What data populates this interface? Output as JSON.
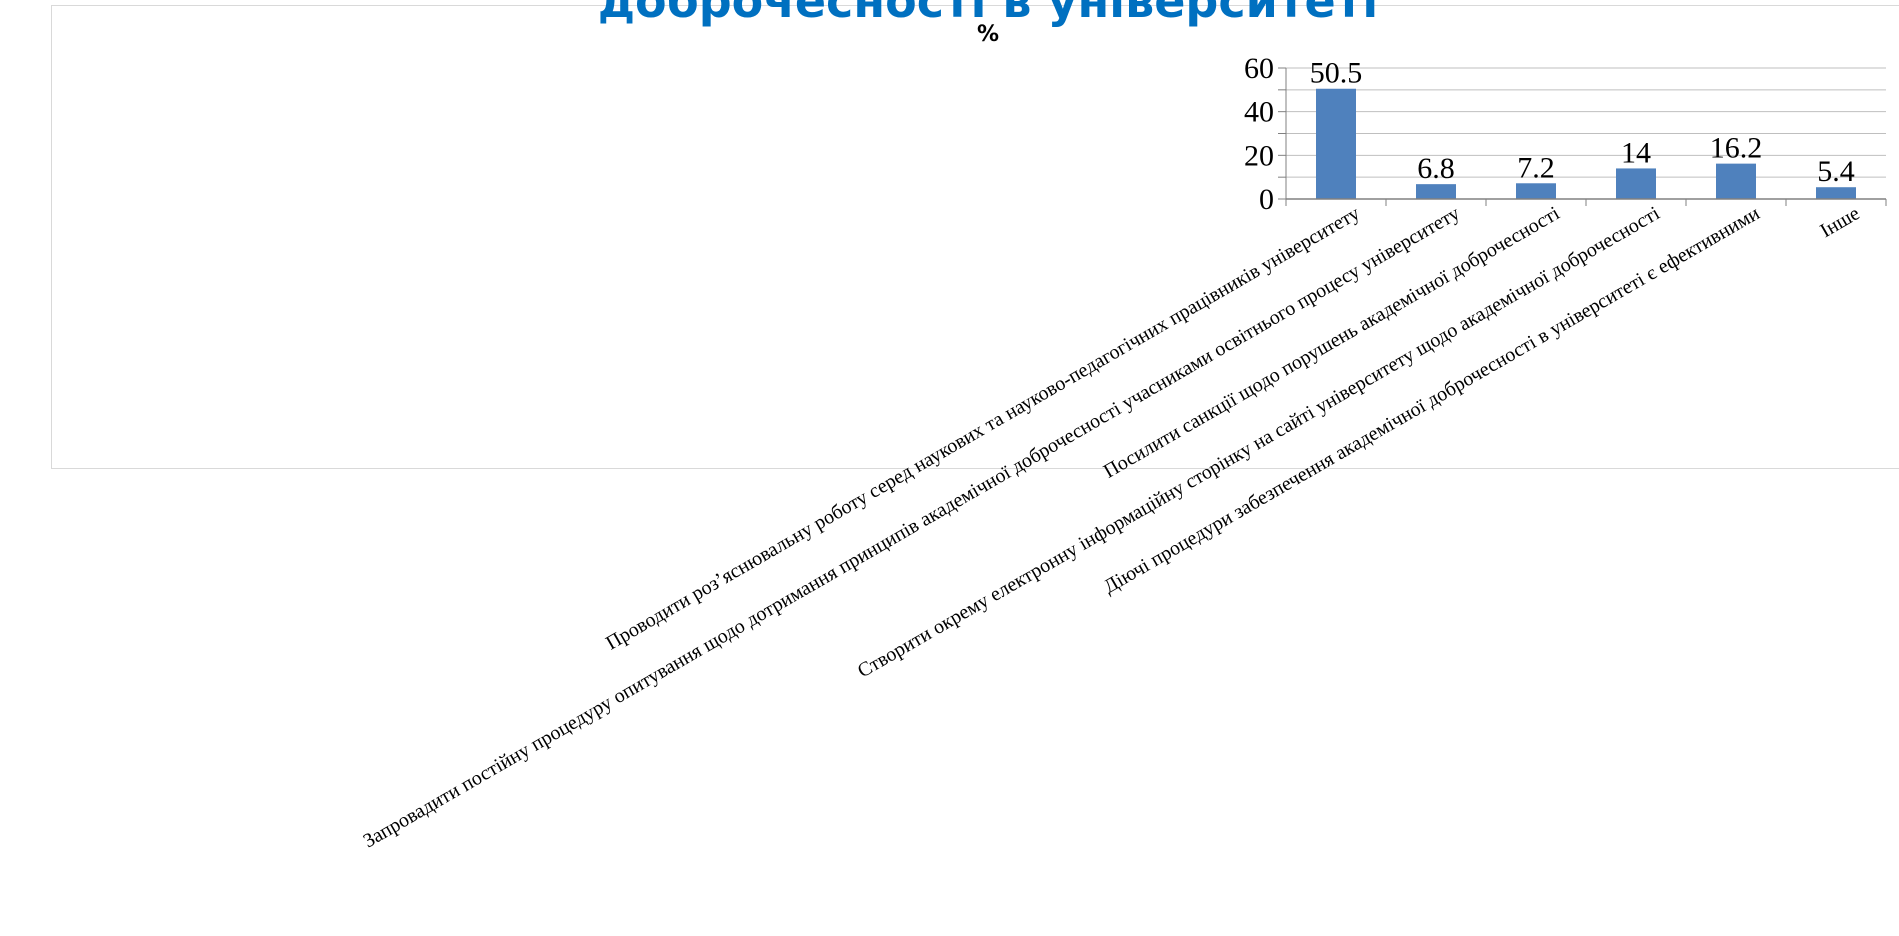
{
  "heading": "доброчесності в університеті",
  "chart_data": {
    "type": "bar",
    "title": "%",
    "categories": [
      "Проводити роз’яснювальну роботу серед наукових та науково-педагогічних працівників університету",
      "Запровадити постійну процедуру опитування щодо дотримання принципів академічної доброчесності учасниками освітнього процесу університету",
      "Посилити санкції щодо порушень академічної доброчесності",
      "Створити окрему електронну інформаційну сторінку на сайті університету щодо академічної доброчесності",
      "Діючі процедури забезпечення академічної доброчесності в університеті є ефективними",
      "Інше"
    ],
    "values": [
      50.5,
      6.8,
      7.2,
      14,
      16.2,
      5.4
    ],
    "data_labels": [
      "50.5",
      "6.8",
      "7.2",
      "14",
      "16.2",
      "5.4"
    ],
    "y_ticks": [
      "0",
      "20",
      "40",
      "60"
    ],
    "ylim": [
      0,
      60
    ],
    "grid": true,
    "legend": "none",
    "bar_color": "#4f81bd",
    "grid_color": "#bfbfbf",
    "heading_color": "#0070c0"
  }
}
